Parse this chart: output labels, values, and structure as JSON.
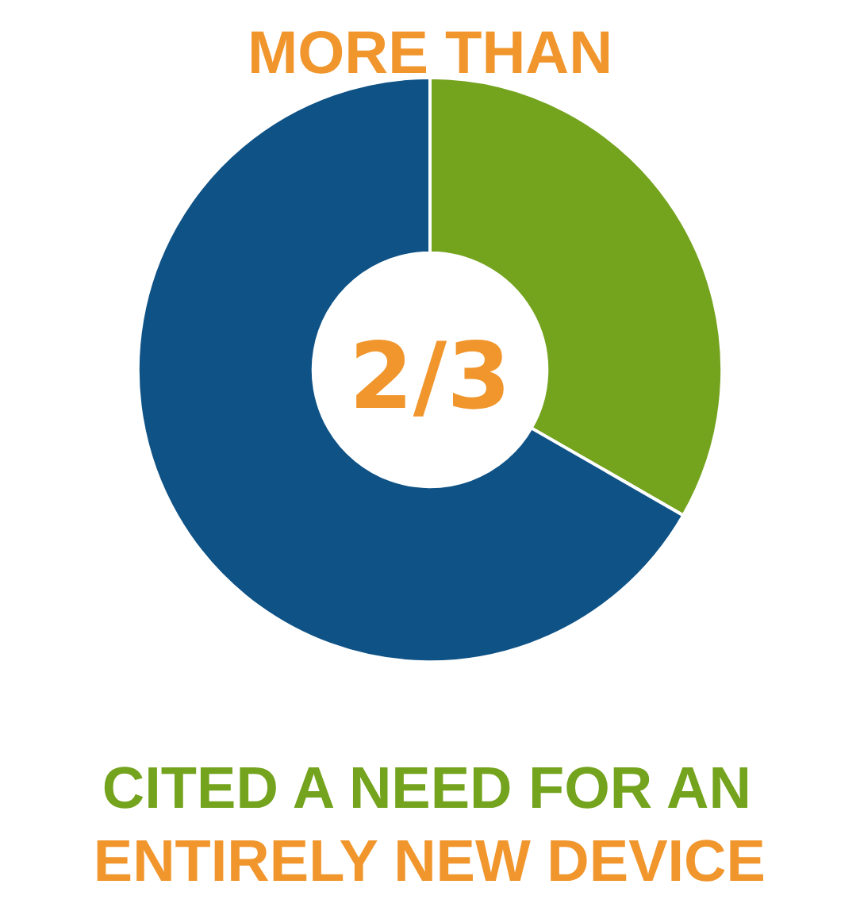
{
  "chart_data": {
    "type": "donut",
    "title": "MORE THAN",
    "categories": [
      null,
      null
    ],
    "values": [
      33.3,
      66.7
    ],
    "colors": [
      "#74a31e",
      "#0f5286"
    ],
    "annotations": [
      "2/3",
      "CITED A NEED FOR AN",
      "ENTIRELY NEW DEVICE"
    ]
  }
}
